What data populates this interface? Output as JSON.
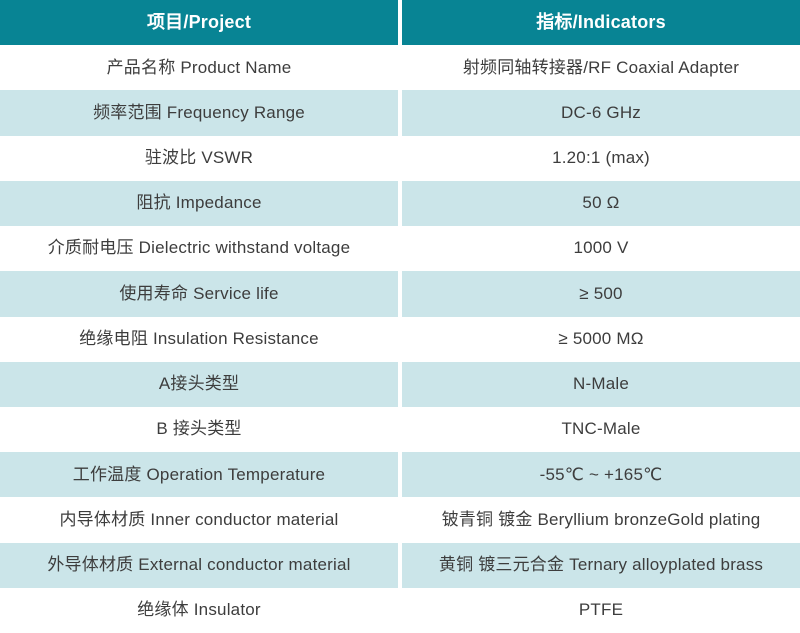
{
  "table": {
    "header": {
      "col1": "项目/Project",
      "col2": "指标/Indicators"
    },
    "rows": [
      {
        "project": "产品名称 Product Name",
        "indicator": "射频同轴转接器/RF Coaxial Adapter"
      },
      {
        "project": "频率范围 Frequency Range",
        "indicator": "DC-6 GHz"
      },
      {
        "project": "驻波比 VSWR",
        "indicator": "1.20:1 (max)"
      },
      {
        "project": "阻抗 Impedance",
        "indicator": "50 Ω"
      },
      {
        "project": "介质耐电压 Dielectric withstand voltage",
        "indicator": "1000 V"
      },
      {
        "project": "使用寿命 Service life",
        "indicator": "≥ 500"
      },
      {
        "project": "绝缘电阻 Insulation Resistance",
        "indicator": "≥ 5000 MΩ"
      },
      {
        "project": "A接头类型",
        "indicator": "N-Male"
      },
      {
        "project": "B 接头类型",
        "indicator": "TNC-Male"
      },
      {
        "project": "工作温度 Operation Temperature",
        "indicator": "-55℃ ~ +165℃"
      },
      {
        "project": "内导体材质 Inner conductor material",
        "indicator": "铍青铜 镀金 Beryllium bronzeGold plating"
      },
      {
        "project": "外导体材质 External conductor material",
        "indicator": "黄铜 镀三元合金 Ternary alloyplated brass"
      },
      {
        "project": "绝缘体 Insulator",
        "indicator": "PTFE"
      }
    ],
    "colors": {
      "header_bg": "#088494",
      "header_text": "#FFFFFF",
      "row_alt_bg": "#CBE5E9",
      "row_bg": "#FFFFFF",
      "body_text": "#3D3D3D"
    }
  }
}
